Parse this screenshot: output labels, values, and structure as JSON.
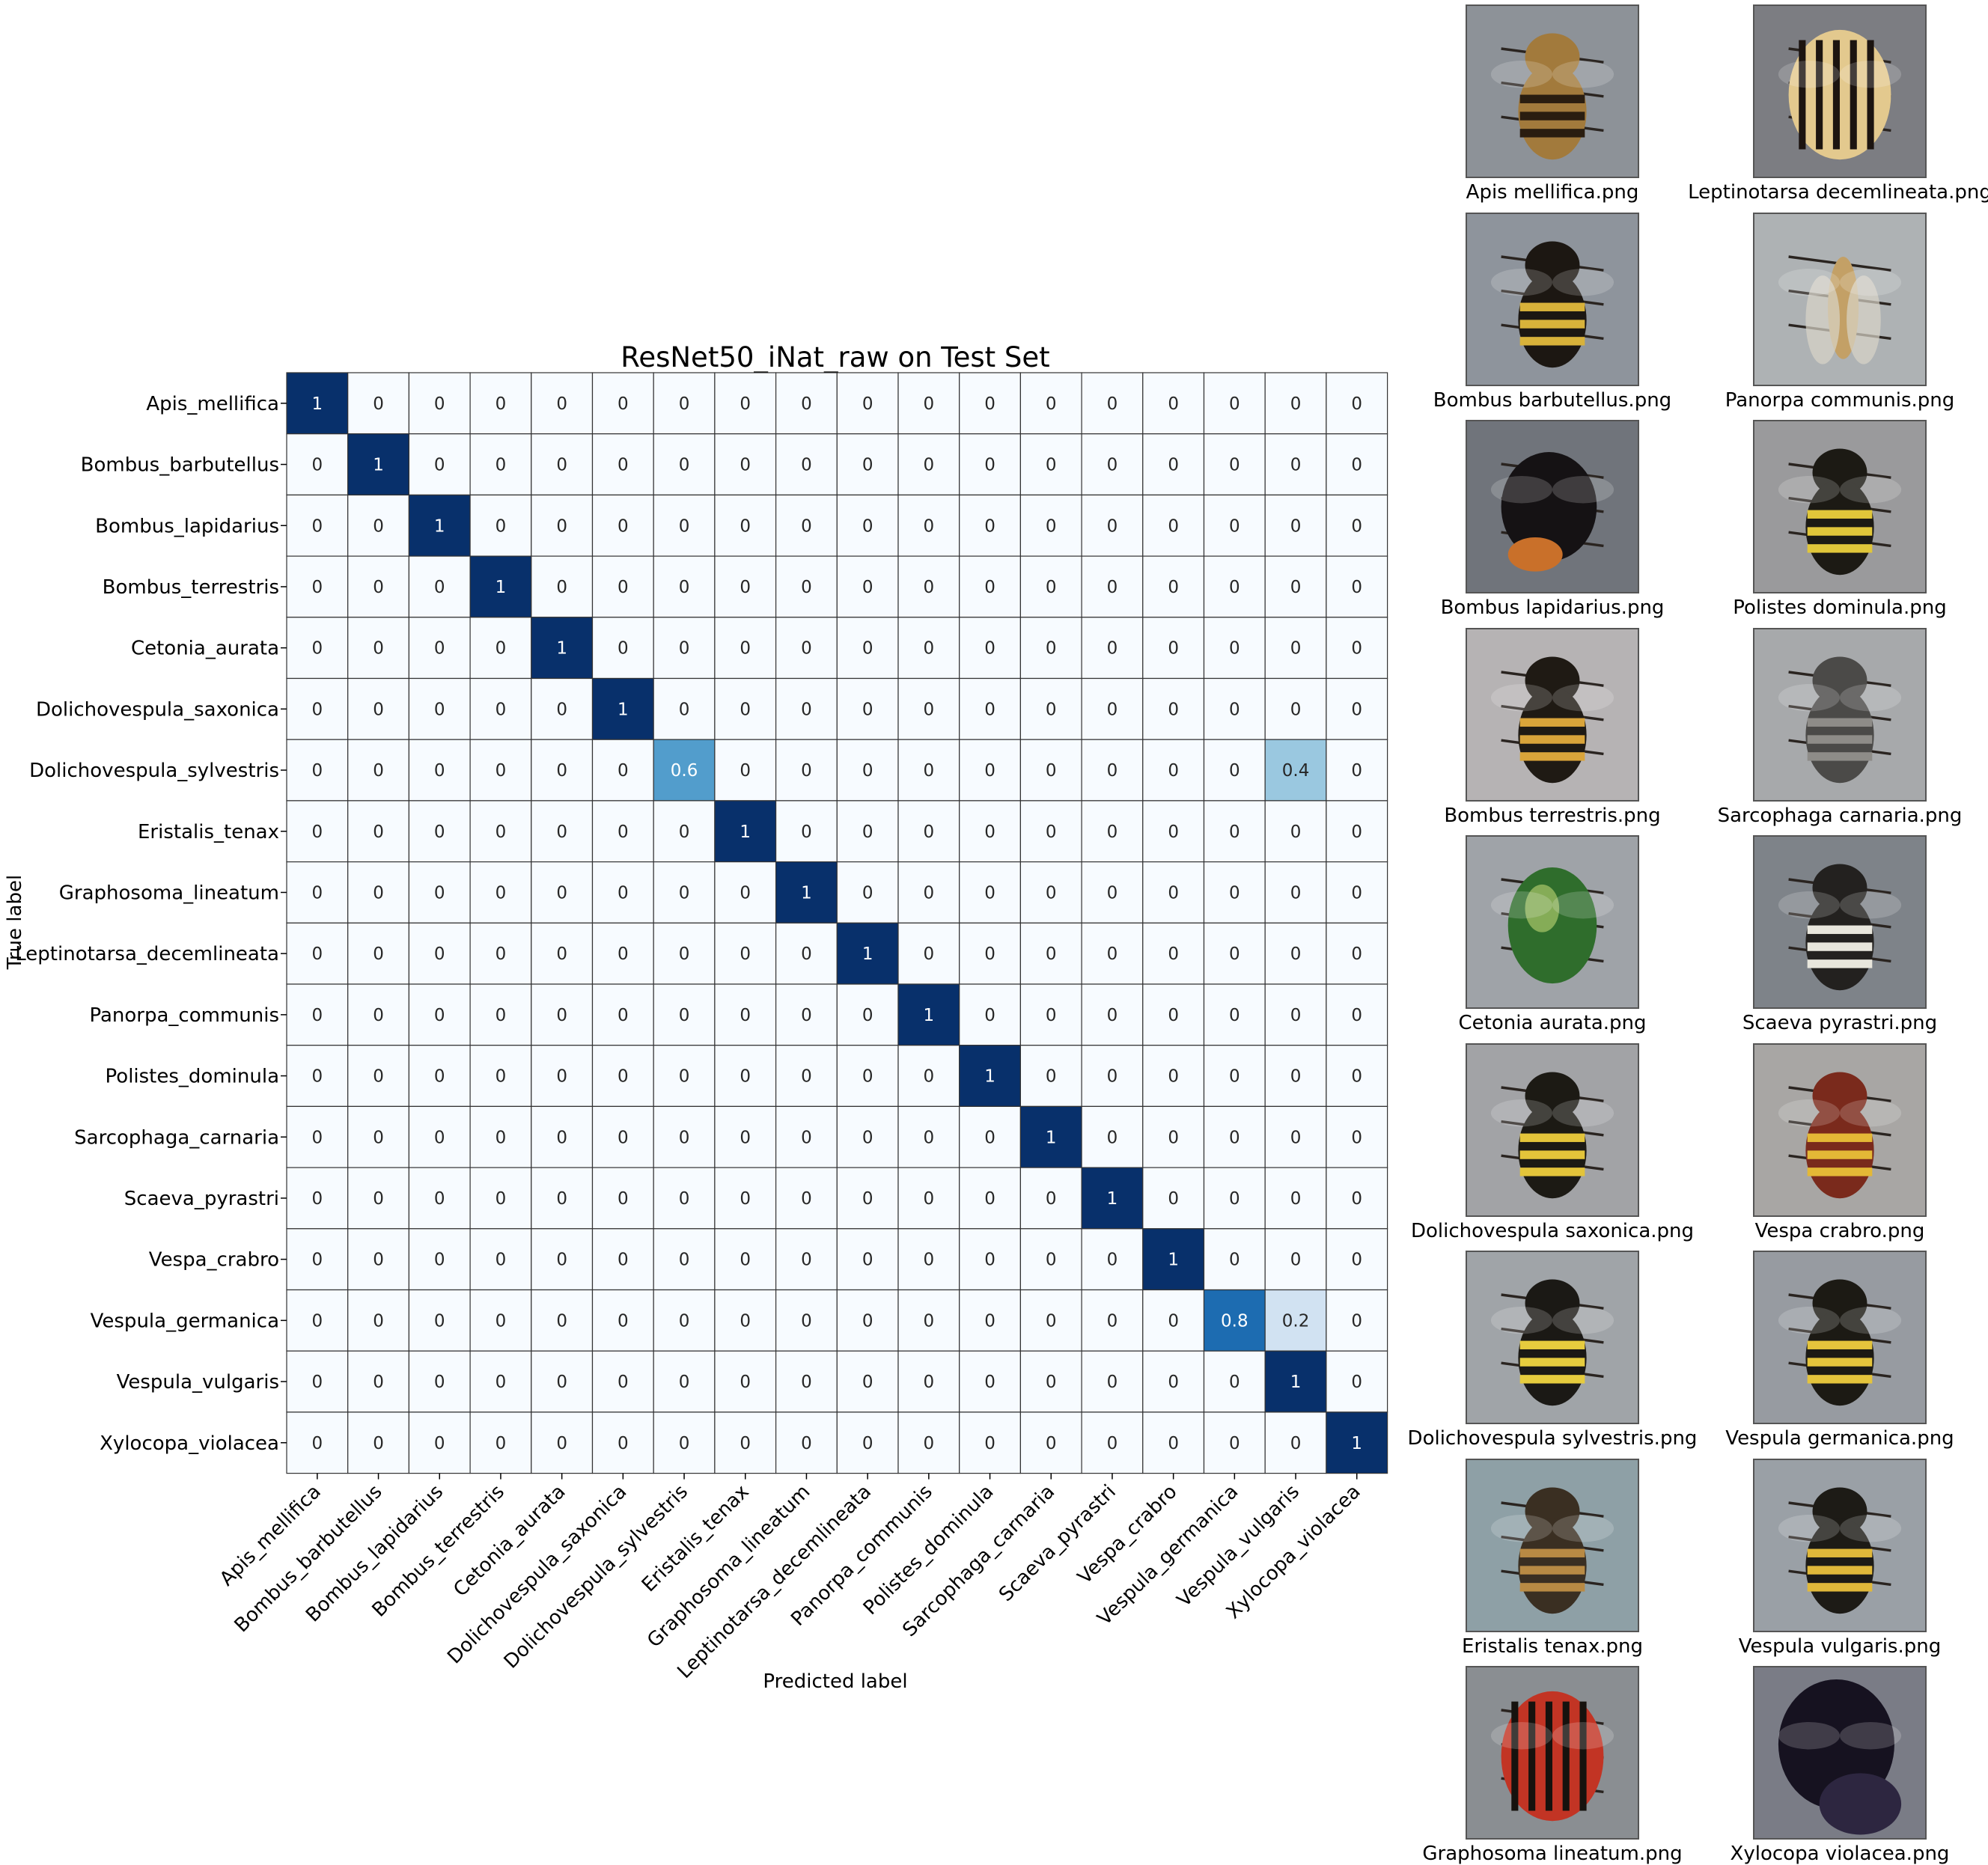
{
  "chart_data": {
    "type": "heatmap",
    "title": "ResNet50_iNat_raw on Test Set",
    "xlabel": "Predicted label",
    "ylabel": "True label",
    "colormap": "Blues",
    "range": [
      0,
      1
    ],
    "labels": [
      "Apis_mellifica",
      "Bombus_barbutellus",
      "Bombus_lapidarius",
      "Bombus_terrestris",
      "Cetonia_aurata",
      "Dolichovespula_saxonica",
      "Dolichovespula_sylvestris",
      "Eristalis_tenax",
      "Graphosoma_lineatum",
      "Leptinotarsa_decemlineata",
      "Panorpa_communis",
      "Polistes_dominula",
      "Sarcophaga_carnaria",
      "Scaeva_pyrastri",
      "Vespa_crabro",
      "Vespula_germanica",
      "Vespula_vulgaris",
      "Xylocopa_violacea"
    ],
    "matrix": [
      [
        1,
        0,
        0,
        0,
        0,
        0,
        0,
        0,
        0,
        0,
        0,
        0,
        0,
        0,
        0,
        0,
        0,
        0
      ],
      [
        0,
        1,
        0,
        0,
        0,
        0,
        0,
        0,
        0,
        0,
        0,
        0,
        0,
        0,
        0,
        0,
        0,
        0
      ],
      [
        0,
        0,
        1,
        0,
        0,
        0,
        0,
        0,
        0,
        0,
        0,
        0,
        0,
        0,
        0,
        0,
        0,
        0
      ],
      [
        0,
        0,
        0,
        1,
        0,
        0,
        0,
        0,
        0,
        0,
        0,
        0,
        0,
        0,
        0,
        0,
        0,
        0
      ],
      [
        0,
        0,
        0,
        0,
        1,
        0,
        0,
        0,
        0,
        0,
        0,
        0,
        0,
        0,
        0,
        0,
        0,
        0
      ],
      [
        0,
        0,
        0,
        0,
        0,
        1,
        0,
        0,
        0,
        0,
        0,
        0,
        0,
        0,
        0,
        0,
        0,
        0
      ],
      [
        0,
        0,
        0,
        0,
        0,
        0,
        0.6,
        0,
        0,
        0,
        0,
        0,
        0,
        0,
        0,
        0,
        0.4,
        0
      ],
      [
        0,
        0,
        0,
        0,
        0,
        0,
        0,
        1,
        0,
        0,
        0,
        0,
        0,
        0,
        0,
        0,
        0,
        0
      ],
      [
        0,
        0,
        0,
        0,
        0,
        0,
        0,
        0,
        1,
        0,
        0,
        0,
        0,
        0,
        0,
        0,
        0,
        0
      ],
      [
        0,
        0,
        0,
        0,
        0,
        0,
        0,
        0,
        0,
        1,
        0,
        0,
        0,
        0,
        0,
        0,
        0,
        0
      ],
      [
        0,
        0,
        0,
        0,
        0,
        0,
        0,
        0,
        0,
        0,
        1,
        0,
        0,
        0,
        0,
        0,
        0,
        0
      ],
      [
        0,
        0,
        0,
        0,
        0,
        0,
        0,
        0,
        0,
        0,
        0,
        1,
        0,
        0,
        0,
        0,
        0,
        0
      ],
      [
        0,
        0,
        0,
        0,
        0,
        0,
        0,
        0,
        0,
        0,
        0,
        0,
        1,
        0,
        0,
        0,
        0,
        0
      ],
      [
        0,
        0,
        0,
        0,
        0,
        0,
        0,
        0,
        0,
        0,
        0,
        0,
        0,
        1,
        0,
        0,
        0,
        0
      ],
      [
        0,
        0,
        0,
        0,
        0,
        0,
        0,
        0,
        0,
        0,
        0,
        0,
        0,
        0,
        1,
        0,
        0,
        0
      ],
      [
        0,
        0,
        0,
        0,
        0,
        0,
        0,
        0,
        0,
        0,
        0,
        0,
        0,
        0,
        0,
        0.8,
        0.2,
        0
      ],
      [
        0,
        0,
        0,
        0,
        0,
        0,
        0,
        0,
        0,
        0,
        0,
        0,
        0,
        0,
        0,
        0,
        1,
        0
      ],
      [
        0,
        0,
        0,
        0,
        0,
        0,
        0,
        0,
        0,
        0,
        0,
        0,
        0,
        0,
        0,
        0,
        0,
        1
      ]
    ]
  },
  "samples": [
    {
      "caption": "Apis mellifica.png",
      "icon": "honeybee-photo",
      "bg": "#8d9298",
      "body": "#a27a3c",
      "stripe": "#2a1d10",
      "pattern": "bands"
    },
    {
      "caption": "Leptinotarsa decemlineata.png",
      "icon": "potato-beetle-photo",
      "bg": "#7c7d82",
      "body": "#e3c98e",
      "stripe": "#1c1410",
      "pattern": "lines"
    },
    {
      "caption": "Bombus barbutellus.png",
      "icon": "bumblebee-photo",
      "bg": "#8e949c",
      "body": "#1c1712",
      "stripe": "#d8b23a",
      "pattern": "bands"
    },
    {
      "caption": "Panorpa communis.png",
      "icon": "scorpionfly-photo",
      "bg": "#aeb2b4",
      "body": "#c3a066",
      "stripe": "#3b2e22",
      "pattern": "thin"
    },
    {
      "caption": "Bombus lapidarius.png",
      "icon": "bumblebee-photo",
      "bg": "#70747b",
      "body": "#151214",
      "stripe": "#c9702a",
      "pattern": "tail"
    },
    {
      "caption": "Polistes dominula.png",
      "icon": "paper-wasp-photo",
      "bg": "#9a9a9c",
      "body": "#1c1a14",
      "stripe": "#e0c63a",
      "pattern": "bands"
    },
    {
      "caption": "Bombus terrestris.png",
      "icon": "bumblebee-photo",
      "bg": "#b6b3b4",
      "body": "#1f1a14",
      "stripe": "#d9a43a",
      "pattern": "bands"
    },
    {
      "caption": "Sarcophaga carnaria.png",
      "icon": "flesh-fly-photo",
      "bg": "#a7a9ab",
      "body": "#4b4a48",
      "stripe": "#8e8c88",
      "pattern": "bands"
    },
    {
      "caption": "Cetonia aurata.png",
      "icon": "rose-chafer-photo",
      "bg": "#9fa3a8",
      "body": "#2f6d2c",
      "stripe": "#a9c86a",
      "pattern": "shell"
    },
    {
      "caption": "Scaeva pyrastri.png",
      "icon": "hoverfly-photo",
      "bg": "#7e8389",
      "body": "#23211f",
      "stripe": "#e8e6dc",
      "pattern": "bands"
    },
    {
      "caption": "Dolichovespula saxonica.png",
      "icon": "wasp-photo",
      "bg": "#a2a3a6",
      "body": "#1c1a14",
      "stripe": "#e3c43a",
      "pattern": "bands"
    },
    {
      "caption": "Vespa crabro.png",
      "icon": "hornet-photo",
      "bg": "#a8a6a4",
      "body": "#7a2a1c",
      "stripe": "#e4b836",
      "pattern": "bands"
    },
    {
      "caption": "Dolichovespula sylvestris.png",
      "icon": "wasp-photo",
      "bg": "#a0a4a8",
      "body": "#1b1915",
      "stripe": "#e6cc3e",
      "pattern": "bands"
    },
    {
      "caption": "Vespula germanica.png",
      "icon": "wasp-photo",
      "bg": "#979ba1",
      "body": "#1c1a14",
      "stripe": "#e4c43c",
      "pattern": "bands"
    },
    {
      "caption": "Eristalis tenax.png",
      "icon": "drone-fly-photo",
      "bg": "#8ea0a6",
      "body": "#3a2f22",
      "stripe": "#b88a44",
      "pattern": "bands"
    },
    {
      "caption": "Vespula vulgaris.png",
      "icon": "wasp-photo",
      "bg": "#9aa0a6",
      "body": "#1d1b16",
      "stripe": "#e0b83a",
      "pattern": "bands"
    },
    {
      "caption": "Graphosoma lineatum.png",
      "icon": "shield-bug-photo",
      "bg": "#8a8e92",
      "body": "#c23424",
      "stripe": "#16120e",
      "pattern": "lines"
    },
    {
      "caption": "Xylocopa violacea.png",
      "icon": "carpenter-bee-photo",
      "bg": "#7a7c86",
      "body": "#161220",
      "stripe": "#2d2640",
      "pattern": "dark"
    }
  ]
}
